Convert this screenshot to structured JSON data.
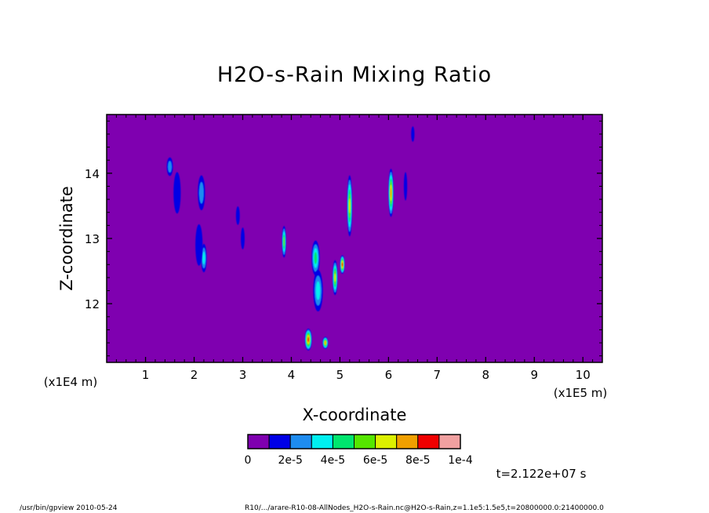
{
  "chart_data": {
    "type": "heatmap",
    "title": "H2O-s-Rain Mixing Ratio",
    "xlabel": "X-coordinate",
    "ylabel": "Z-coordinate",
    "x_unit": "(x1E5 m)",
    "y_unit": "(x1E4 m)",
    "xlim": [
      0.2,
      10.4
    ],
    "ylim": [
      11.1,
      14.9
    ],
    "x_ticks": [
      "1",
      "2",
      "3",
      "4",
      "5",
      "6",
      "7",
      "8",
      "9",
      "10"
    ],
    "y_ticks": [
      "12",
      "13",
      "14"
    ],
    "colorbar": {
      "colors": [
        "#7f00b0",
        "#0000e6",
        "#1e8cf0",
        "#00f0f0",
        "#00e66e",
        "#55e600",
        "#dcf000",
        "#f0a000",
        "#f00000",
        "#f0a0a0"
      ],
      "labels": [
        "0",
        "2e-5",
        "4e-5",
        "6e-5",
        "8e-5",
        "1e-4"
      ]
    },
    "background_value": 0,
    "time_label": "t=2.122e+07 s",
    "footer_left": "/usr/bin/gpview  2010-05-24",
    "footer_right": "R10/.../arare-R10-08-AllNodes_H2O-s-Rain.nc@H2O-s-Rain,z=1.1e5:1.5e5,t=20800000.0:21400000.0",
    "features": [
      {
        "x": 1.5,
        "z": 14.1,
        "w": 0.08,
        "h": 0.25,
        "level": 2
      },
      {
        "x": 1.65,
        "z": 13.7,
        "w": 0.1,
        "h": 0.6,
        "level": 1
      },
      {
        "x": 2.15,
        "z": 13.7,
        "w": 0.1,
        "h": 0.5,
        "level": 2
      },
      {
        "x": 2.2,
        "z": 12.7,
        "w": 0.07,
        "h": 0.4,
        "level": 3
      },
      {
        "x": 2.1,
        "z": 12.9,
        "w": 0.1,
        "h": 0.6,
        "level": 1
      },
      {
        "x": 2.9,
        "z": 13.35,
        "w": 0.03,
        "h": 0.25,
        "level": 1
      },
      {
        "x": 3.0,
        "z": 13.0,
        "w": 0.03,
        "h": 0.3,
        "level": 1
      },
      {
        "x": 3.85,
        "z": 12.95,
        "w": 0.04,
        "h": 0.45,
        "level": 5
      },
      {
        "x": 4.35,
        "z": 11.45,
        "w": 0.1,
        "h": 0.3,
        "level": 8
      },
      {
        "x": 4.5,
        "z": 12.7,
        "w": 0.12,
        "h": 0.5,
        "level": 4
      },
      {
        "x": 4.55,
        "z": 12.2,
        "w": 0.15,
        "h": 0.6,
        "level": 3
      },
      {
        "x": 4.7,
        "z": 11.4,
        "w": 0.07,
        "h": 0.15,
        "level": 7
      },
      {
        "x": 4.9,
        "z": 12.4,
        "w": 0.06,
        "h": 0.5,
        "level": 6
      },
      {
        "x": 5.05,
        "z": 12.6,
        "w": 0.05,
        "h": 0.25,
        "level": 8
      },
      {
        "x": 5.2,
        "z": 13.5,
        "w": 0.06,
        "h": 0.9,
        "level": 6
      },
      {
        "x": 6.05,
        "z": 13.7,
        "w": 0.06,
        "h": 0.7,
        "level": 7
      },
      {
        "x": 6.35,
        "z": 13.8,
        "w": 0.02,
        "h": 0.4,
        "level": 1
      },
      {
        "x": 6.5,
        "z": 14.6,
        "w": 0.02,
        "h": 0.2,
        "level": 1
      }
    ]
  }
}
